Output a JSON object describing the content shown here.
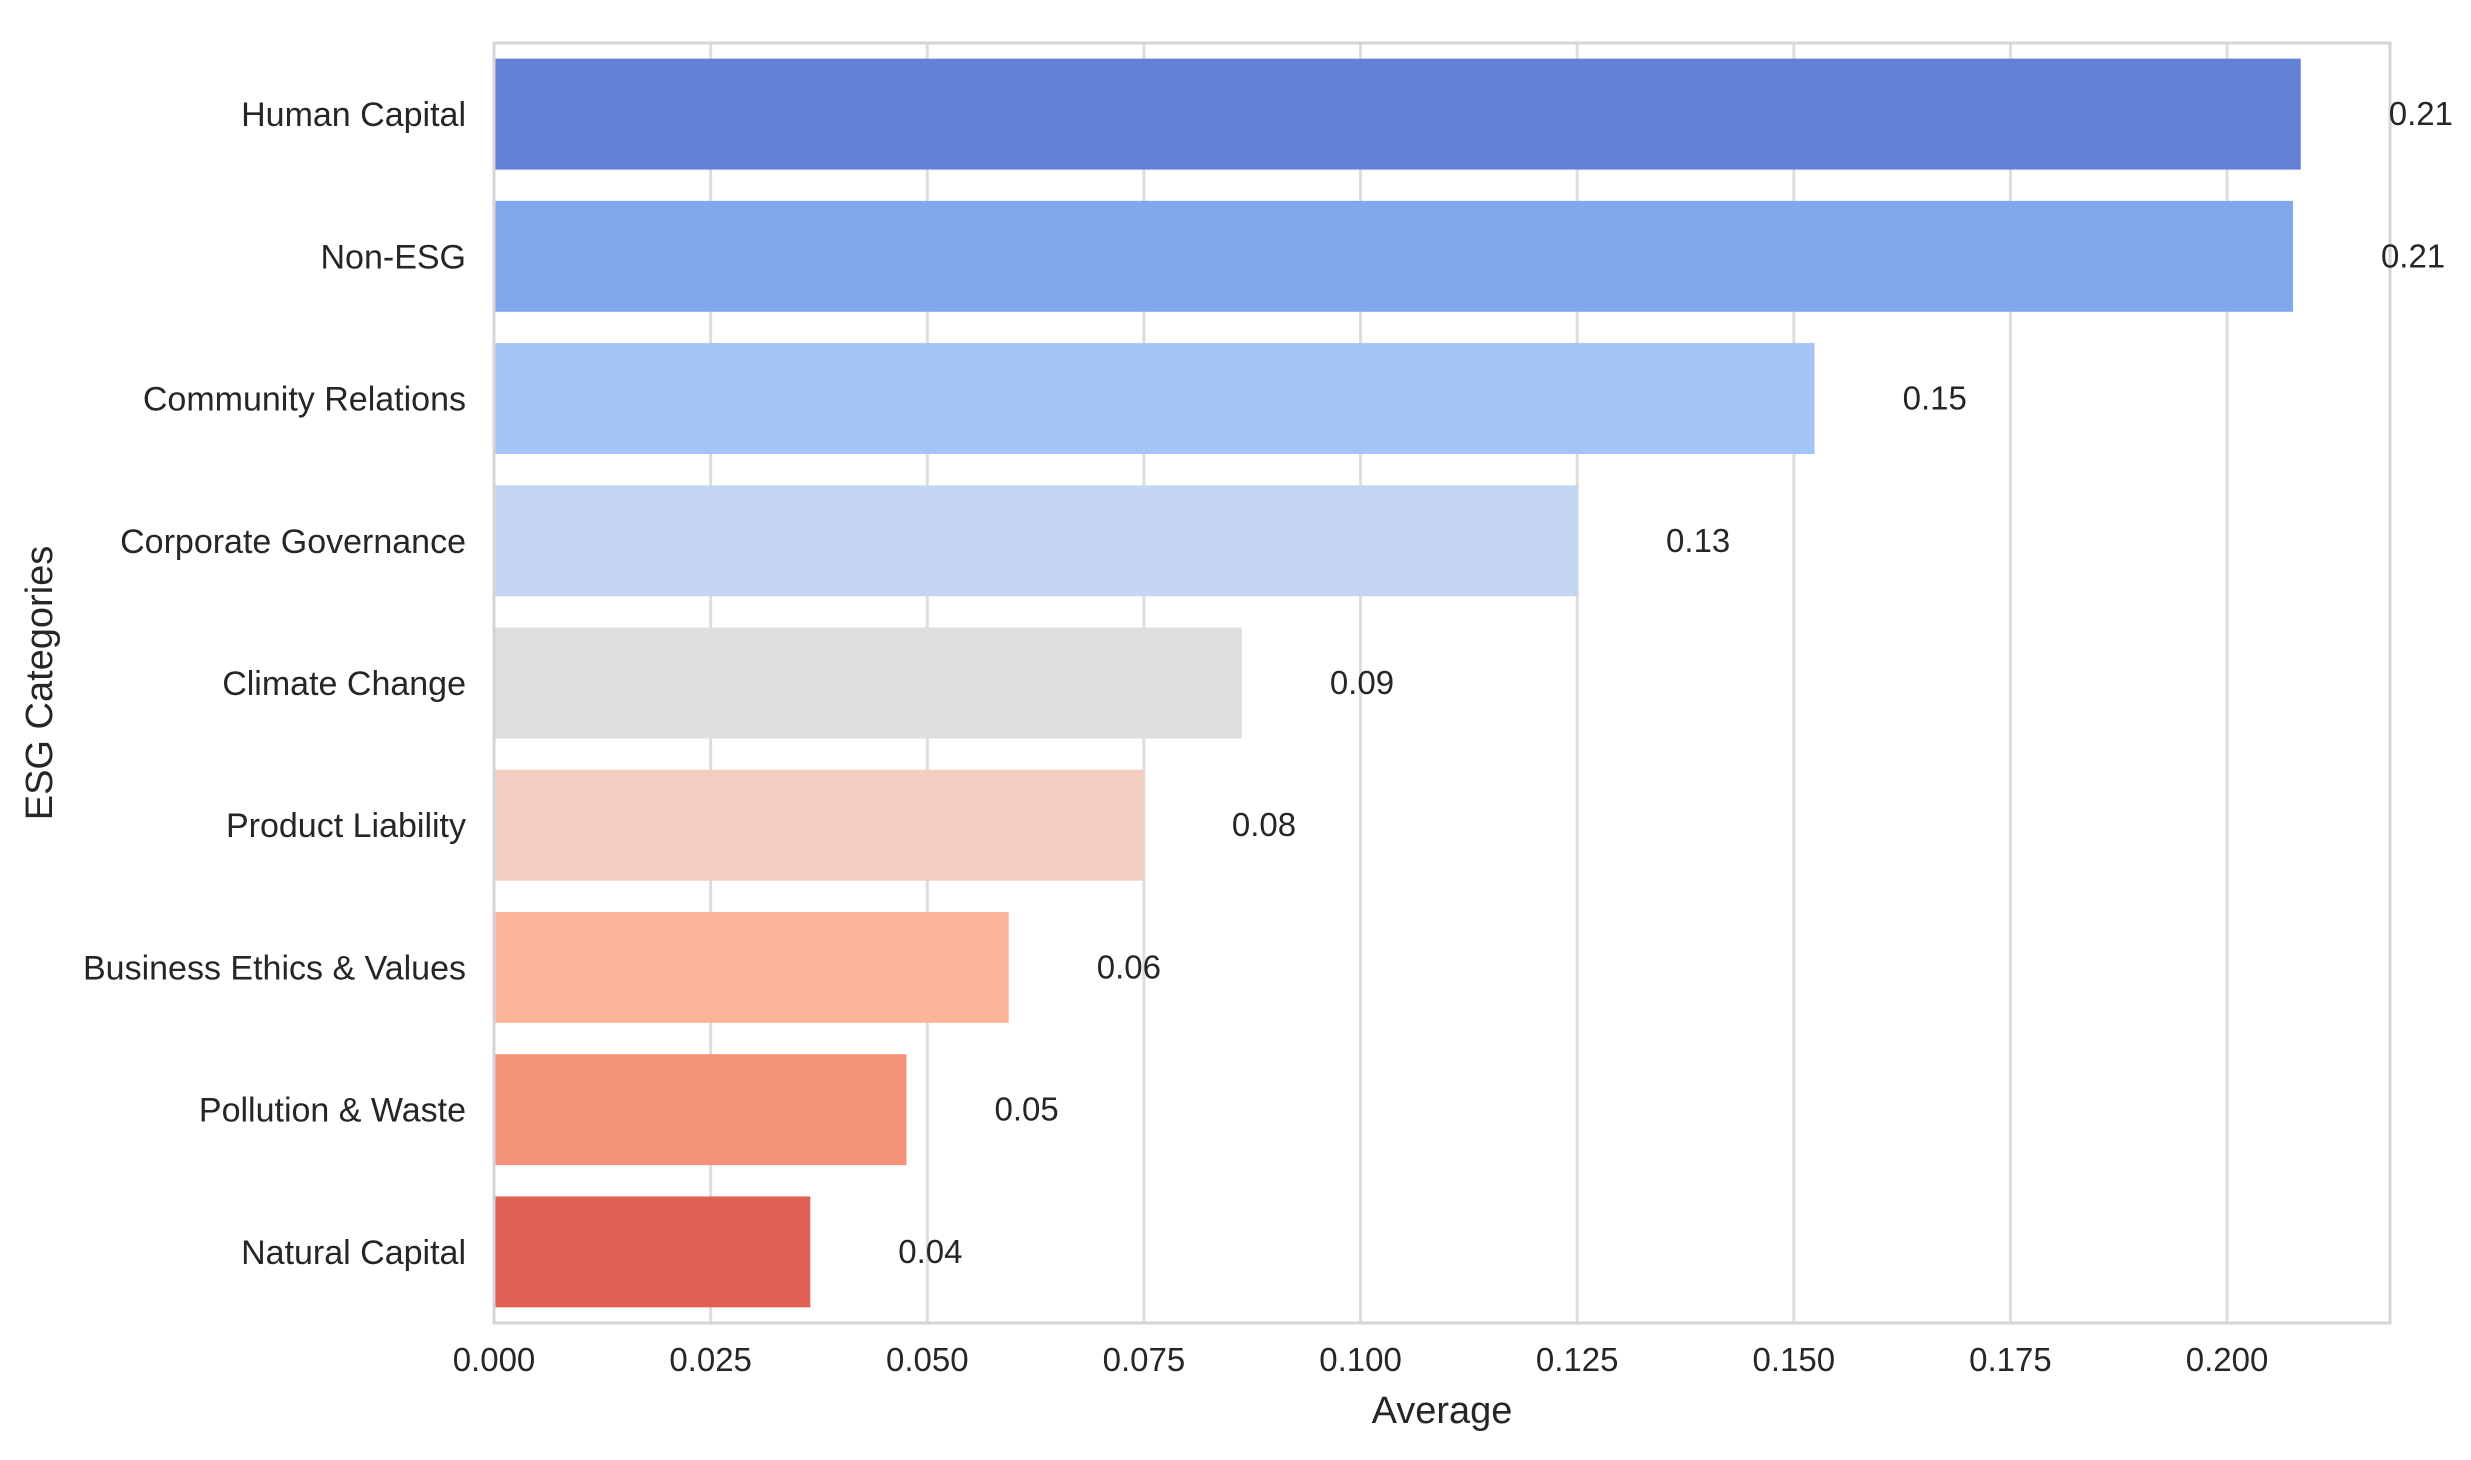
{
  "chart_data": {
    "type": "bar",
    "orientation": "horizontal",
    "title": "",
    "xlabel": "Average",
    "ylabel": "ESG Categories",
    "xlim": [
      0,
      0.2188
    ],
    "x_ticks": [
      0.0,
      0.025,
      0.05,
      0.075,
      0.1,
      0.125,
      0.15,
      0.175,
      0.2
    ],
    "x_tick_labels": [
      "0.000",
      "0.025",
      "0.050",
      "0.075",
      "0.100",
      "0.125",
      "0.150",
      "0.175",
      "0.200"
    ],
    "grid": "vertical",
    "categories": [
      "Human Capital",
      "Non-ESG",
      "Community Relations",
      "Corporate Governance",
      "Climate Change",
      "Product Liability",
      "Business Ethics & Values",
      "Pollution & Waste",
      "Natural Capital"
    ],
    "values": [
      0.2085,
      0.2076,
      0.1524,
      0.1251,
      0.0863,
      0.075,
      0.0594,
      0.0476,
      0.0365
    ],
    "value_labels": [
      "0.21",
      "0.21",
      "0.15",
      "0.13",
      "0.09",
      "0.08",
      "0.06",
      "0.05",
      "0.04"
    ],
    "colors": [
      "#6282d6",
      "#80a8ec",
      "#a2c4f7",
      "#c4d6f1",
      "#dedede",
      "#f3cdbf",
      "#fbb59b",
      "#f39179",
      "#de6154"
    ],
    "frame_color": "#d5d5d5",
    "grid_color": "#dddddd"
  }
}
